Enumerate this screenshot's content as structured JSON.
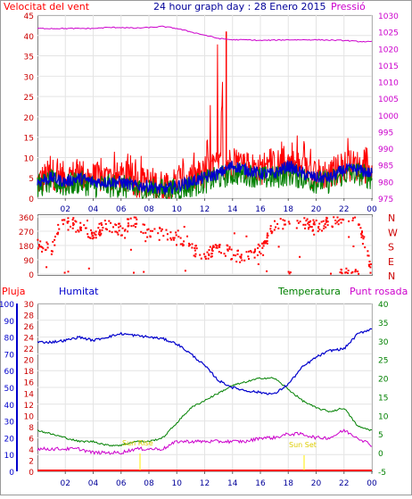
{
  "chart_data": [
    {
      "type": "line",
      "title": "24 hour graph day : 28 Enero 2015",
      "left_label": "Velocitat del vent",
      "right_label": "Pressió",
      "x_ticks": [
        "02",
        "04",
        "06",
        "08",
        "10",
        "12",
        "14",
        "16",
        "18",
        "20",
        "22",
        "00"
      ],
      "ylim_left": [
        0,
        45
      ],
      "yticks_left": [
        "0",
        "5",
        "10",
        "15",
        "20",
        "25",
        "30",
        "35",
        "40",
        "45"
      ],
      "ylim_right": [
        975,
        1030
      ],
      "yticks_right": [
        "975",
        "980",
        "985",
        "990",
        "995",
        "1000",
        "1005",
        "1010",
        "1015",
        "1020",
        "1025",
        "1030"
      ],
      "grid": true,
      "colors": {
        "gust": "#ff0000",
        "average": "#0000cc",
        "wind_green": "#008000",
        "pressure": "#cc00cc"
      },
      "series_hourly": {
        "hours": [
          0,
          1,
          2,
          3,
          4,
          5,
          6,
          7,
          8,
          9,
          10,
          11,
          12,
          13,
          14,
          15,
          16,
          17,
          18,
          19,
          20,
          21,
          22,
          23,
          24
        ],
        "gust_max": [
          9,
          14,
          12,
          11,
          13,
          12,
          11,
          12,
          10,
          11,
          10,
          11,
          13,
          41,
          15,
          12,
          12,
          13,
          18,
          15,
          11,
          10,
          16,
          14,
          12
        ],
        "gust_base": [
          4,
          6,
          5,
          6,
          5,
          5,
          5,
          4,
          4,
          3,
          4,
          5,
          6,
          8,
          9,
          8,
          7,
          8,
          9,
          7,
          6,
          6,
          8,
          8,
          7
        ],
        "average": [
          4,
          5,
          4,
          5,
          4,
          4,
          4,
          3,
          3,
          2,
          3,
          4,
          5,
          6,
          8,
          7,
          6,
          6,
          8,
          6,
          5,
          5,
          7,
          7,
          6
        ],
        "green": [
          3,
          4,
          3,
          4,
          3,
          3,
          3,
          2,
          2,
          2,
          2,
          3,
          4,
          5,
          6,
          6,
          5,
          5,
          6,
          5,
          4,
          4,
          6,
          6,
          5
        ],
        "pressure": [
          1026,
          1026,
          1026,
          1026,
          1026,
          1026.3,
          1026.3,
          1026.1,
          1026.3,
          1026.6,
          1026,
          1025,
          1024,
          1023,
          1022.6,
          1022.6,
          1022.4,
          1022.5,
          1022.6,
          1022.6,
          1022.6,
          1022.5,
          1022.4,
          1022.1,
          1022
        ]
      }
    },
    {
      "type": "scatter",
      "title": "",
      "ylim": [
        0,
        360
      ],
      "yticks": [
        "0",
        "90",
        "180",
        "270",
        "360"
      ],
      "compass_labels": [
        "N",
        "W",
        "S",
        "E",
        "N"
      ],
      "color": "#ff0000",
      "direction_hourly": [
        180,
        160,
        350,
        290,
        250,
        310,
        280,
        340,
        260,
        250,
        250,
        160,
        110,
        180,
        120,
        110,
        160,
        300,
        340,
        320,
        300,
        320,
        360,
        350,
        10
      ]
    },
    {
      "type": "line",
      "title": "",
      "legend": {
        "rain": "Pluja",
        "humidity": "Humitat",
        "temperature": "Temperatura",
        "dewpoint": "Punt rosada"
      },
      "ylim_humidity": [
        0,
        100
      ],
      "yticks_humidity": [
        "0",
        "10",
        "20",
        "30",
        "40",
        "50",
        "60",
        "70",
        "80",
        "90",
        "100"
      ],
      "ylim_rain": [
        0,
        30
      ],
      "yticks_rain": [
        "0",
        "2",
        "4",
        "6",
        "8",
        "10",
        "12",
        "14",
        "16",
        "18",
        "20",
        "22",
        "24",
        "26",
        "28",
        "30"
      ],
      "ylim_temp": [
        -5,
        40
      ],
      "yticks_temp": [
        "-5",
        "0",
        "5",
        "10",
        "15",
        "20",
        "25",
        "30",
        "35",
        "40"
      ],
      "grid": true,
      "annotations": [
        "Sun Rise",
        "Sun Set"
      ],
      "colors": {
        "rain": "#ff0000",
        "humidity": "#0000cc",
        "temperature": "#008000",
        "dewpoint": "#cc00cc",
        "sun": "#ffee00"
      },
      "series_hourly": {
        "hours": [
          0,
          1,
          2,
          3,
          4,
          5,
          6,
          7,
          8,
          9,
          10,
          11,
          12,
          13,
          14,
          15,
          16,
          17,
          18,
          19,
          20,
          21,
          22,
          23,
          24
        ],
        "humidity": [
          77,
          77,
          78,
          80,
          78,
          80,
          82,
          81,
          80,
          79,
          76,
          70,
          63,
          54,
          50,
          48,
          47,
          46,
          52,
          62,
          68,
          72,
          73,
          82,
          85
        ],
        "temperature": [
          6,
          5,
          4,
          3,
          3,
          2,
          2,
          3,
          3,
          4,
          8,
          12,
          14,
          16,
          18,
          19,
          20,
          20,
          17,
          14,
          12,
          11,
          12,
          7,
          6
        ],
        "dewpoint": [
          1,
          1,
          1,
          1,
          0,
          0,
          0,
          1,
          1,
          1,
          3,
          3,
          3,
          3,
          3,
          3,
          4,
          4,
          5,
          5,
          4,
          4,
          6,
          4,
          2
        ],
        "rain": [
          0,
          0,
          0,
          0,
          0,
          0,
          0,
          0,
          0,
          0,
          0,
          0,
          0,
          0,
          0,
          0,
          0,
          0,
          0,
          0,
          0,
          0,
          0,
          0,
          0
        ]
      }
    }
  ]
}
